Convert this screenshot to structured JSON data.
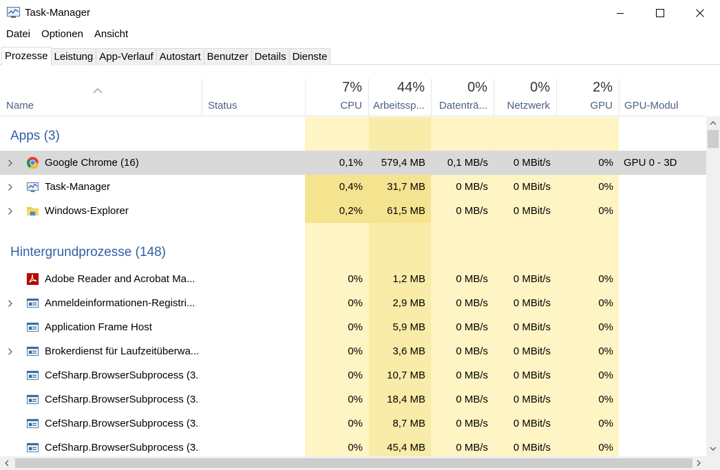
{
  "window": {
    "title": "Task-Manager"
  },
  "menu": [
    "Datei",
    "Optionen",
    "Ansicht"
  ],
  "tabs": [
    "Prozesse",
    "Leistung",
    "App-Verlauf",
    "Autostart",
    "Benutzer",
    "Details",
    "Dienste"
  ],
  "active_tab": "Prozesse",
  "columns": {
    "name": "Name",
    "status": "Status",
    "cpu": {
      "pct": "7%",
      "label": "CPU"
    },
    "memory": {
      "pct": "44%",
      "label": "Arbeitssp..."
    },
    "disk": {
      "pct": "0%",
      "label": "Datenträ..."
    },
    "network": {
      "pct": "0%",
      "label": "Netzwerk"
    },
    "gpu": {
      "pct": "2%",
      "label": "GPU"
    },
    "gpu_engine": "GPU-Modul"
  },
  "groups": [
    {
      "title": "Apps (3)",
      "rows": [
        {
          "name": "Google Chrome (16)",
          "icon": "chrome-icon",
          "expandable": true,
          "selected": true,
          "cpu": "0,1%",
          "mem": "579,4 MB",
          "disk": "0,1 MB/s",
          "net": "0 MBit/s",
          "gpu": "0%",
          "gpu_engine": "GPU 0 - 3D"
        },
        {
          "name": "Task-Manager",
          "icon": "task-manager-icon",
          "expandable": true,
          "selected": false,
          "cpu": "0,4%",
          "mem": "31,7 MB",
          "disk": "0 MB/s",
          "net": "0 MBit/s",
          "gpu": "0%",
          "gpu_engine": ""
        },
        {
          "name": "Windows-Explorer",
          "icon": "folder-icon",
          "expandable": true,
          "selected": false,
          "cpu": "0,2%",
          "mem": "61,5 MB",
          "disk": "0 MB/s",
          "net": "0 MBit/s",
          "gpu": "0%",
          "gpu_engine": ""
        }
      ]
    },
    {
      "title": "Hintergrundprozesse (148)",
      "rows": [
        {
          "name": "Adobe Reader and Acrobat Ma...",
          "icon": "adobe-icon",
          "expandable": false,
          "selected": false,
          "cpu": "0%",
          "mem": "1,2 MB",
          "disk": "0 MB/s",
          "net": "0 MBit/s",
          "gpu": "0%",
          "gpu_engine": ""
        },
        {
          "name": "Anmeldeinformationen-Registri...",
          "icon": "service-icon",
          "expandable": true,
          "selected": false,
          "cpu": "0%",
          "mem": "2,9 MB",
          "disk": "0 MB/s",
          "net": "0 MBit/s",
          "gpu": "0%",
          "gpu_engine": ""
        },
        {
          "name": "Application Frame Host",
          "icon": "service-icon",
          "expandable": false,
          "selected": false,
          "cpu": "0%",
          "mem": "5,9 MB",
          "disk": "0 MB/s",
          "net": "0 MBit/s",
          "gpu": "0%",
          "gpu_engine": ""
        },
        {
          "name": "Brokerdienst für Laufzeitüberwa...",
          "icon": "service-icon",
          "expandable": true,
          "selected": false,
          "cpu": "0%",
          "mem": "3,6 MB",
          "disk": "0 MB/s",
          "net": "0 MBit/s",
          "gpu": "0%",
          "gpu_engine": ""
        },
        {
          "name": "CefSharp.BrowserSubprocess (3...",
          "icon": "service-icon",
          "expandable": false,
          "selected": false,
          "cpu": "0%",
          "mem": "10,7 MB",
          "disk": "0 MB/s",
          "net": "0 MBit/s",
          "gpu": "0%",
          "gpu_engine": ""
        },
        {
          "name": "CefSharp.BrowserSubprocess (3...",
          "icon": "service-icon",
          "expandable": false,
          "selected": false,
          "cpu": "0%",
          "mem": "18,4 MB",
          "disk": "0 MB/s",
          "net": "0 MBit/s",
          "gpu": "0%",
          "gpu_engine": ""
        },
        {
          "name": "CefSharp.BrowserSubprocess (3...",
          "icon": "service-icon",
          "expandable": false,
          "selected": false,
          "cpu": "0%",
          "mem": "8,7 MB",
          "disk": "0 MB/s",
          "net": "0 MBit/s",
          "gpu": "0%",
          "gpu_engine": ""
        },
        {
          "name": "CefSharp.BrowserSubprocess (3...",
          "icon": "service-icon",
          "expandable": false,
          "selected": false,
          "cpu": "0%",
          "mem": "45,4 MB",
          "disk": "0 MB/s",
          "net": "0 MBit/s",
          "gpu": "0%",
          "gpu_engine": ""
        }
      ]
    }
  ],
  "colors": {
    "heat_light": "#fff4c4",
    "heat_mid": "#f9eca8",
    "heat_strong": "#f5e48f",
    "group_title": "#2f5ea8",
    "selected_row": "#d9d9d9"
  }
}
